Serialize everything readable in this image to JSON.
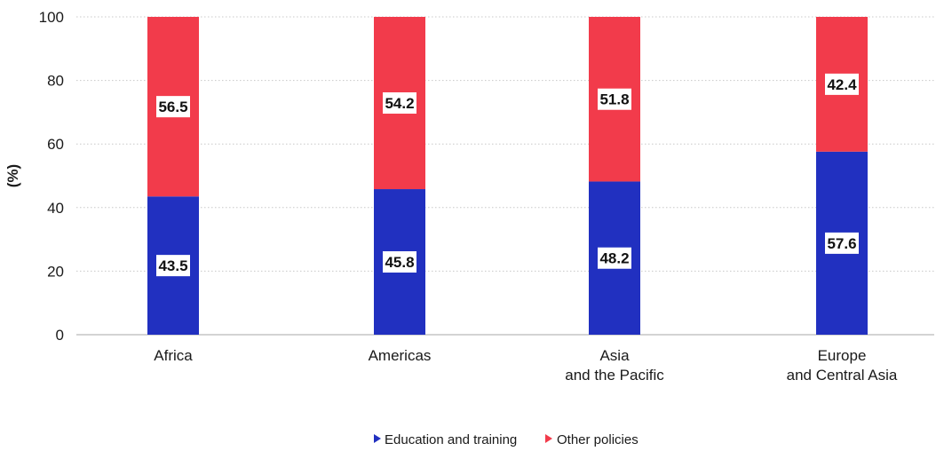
{
  "chart_data": {
    "type": "bar",
    "stacked": true,
    "title": "",
    "xlabel": "",
    "ylabel": "(%)",
    "ylim": [
      0,
      100
    ],
    "yticks": [
      0,
      20,
      40,
      60,
      80,
      100
    ],
    "grid": true,
    "legend_position": "bottom-center",
    "categories": [
      [
        "Africa"
      ],
      [
        "Americas"
      ],
      [
        "Asia",
        "and the Pacific"
      ],
      [
        "Europe",
        "and Central Asia"
      ]
    ],
    "series": [
      {
        "name": "Education and training",
        "color": "#2130c0",
        "values": [
          43.5,
          45.8,
          48.2,
          57.6
        ]
      },
      {
        "name": "Other policies",
        "color": "#f23b4b",
        "values": [
          56.5,
          54.2,
          51.8,
          42.4
        ]
      }
    ]
  }
}
